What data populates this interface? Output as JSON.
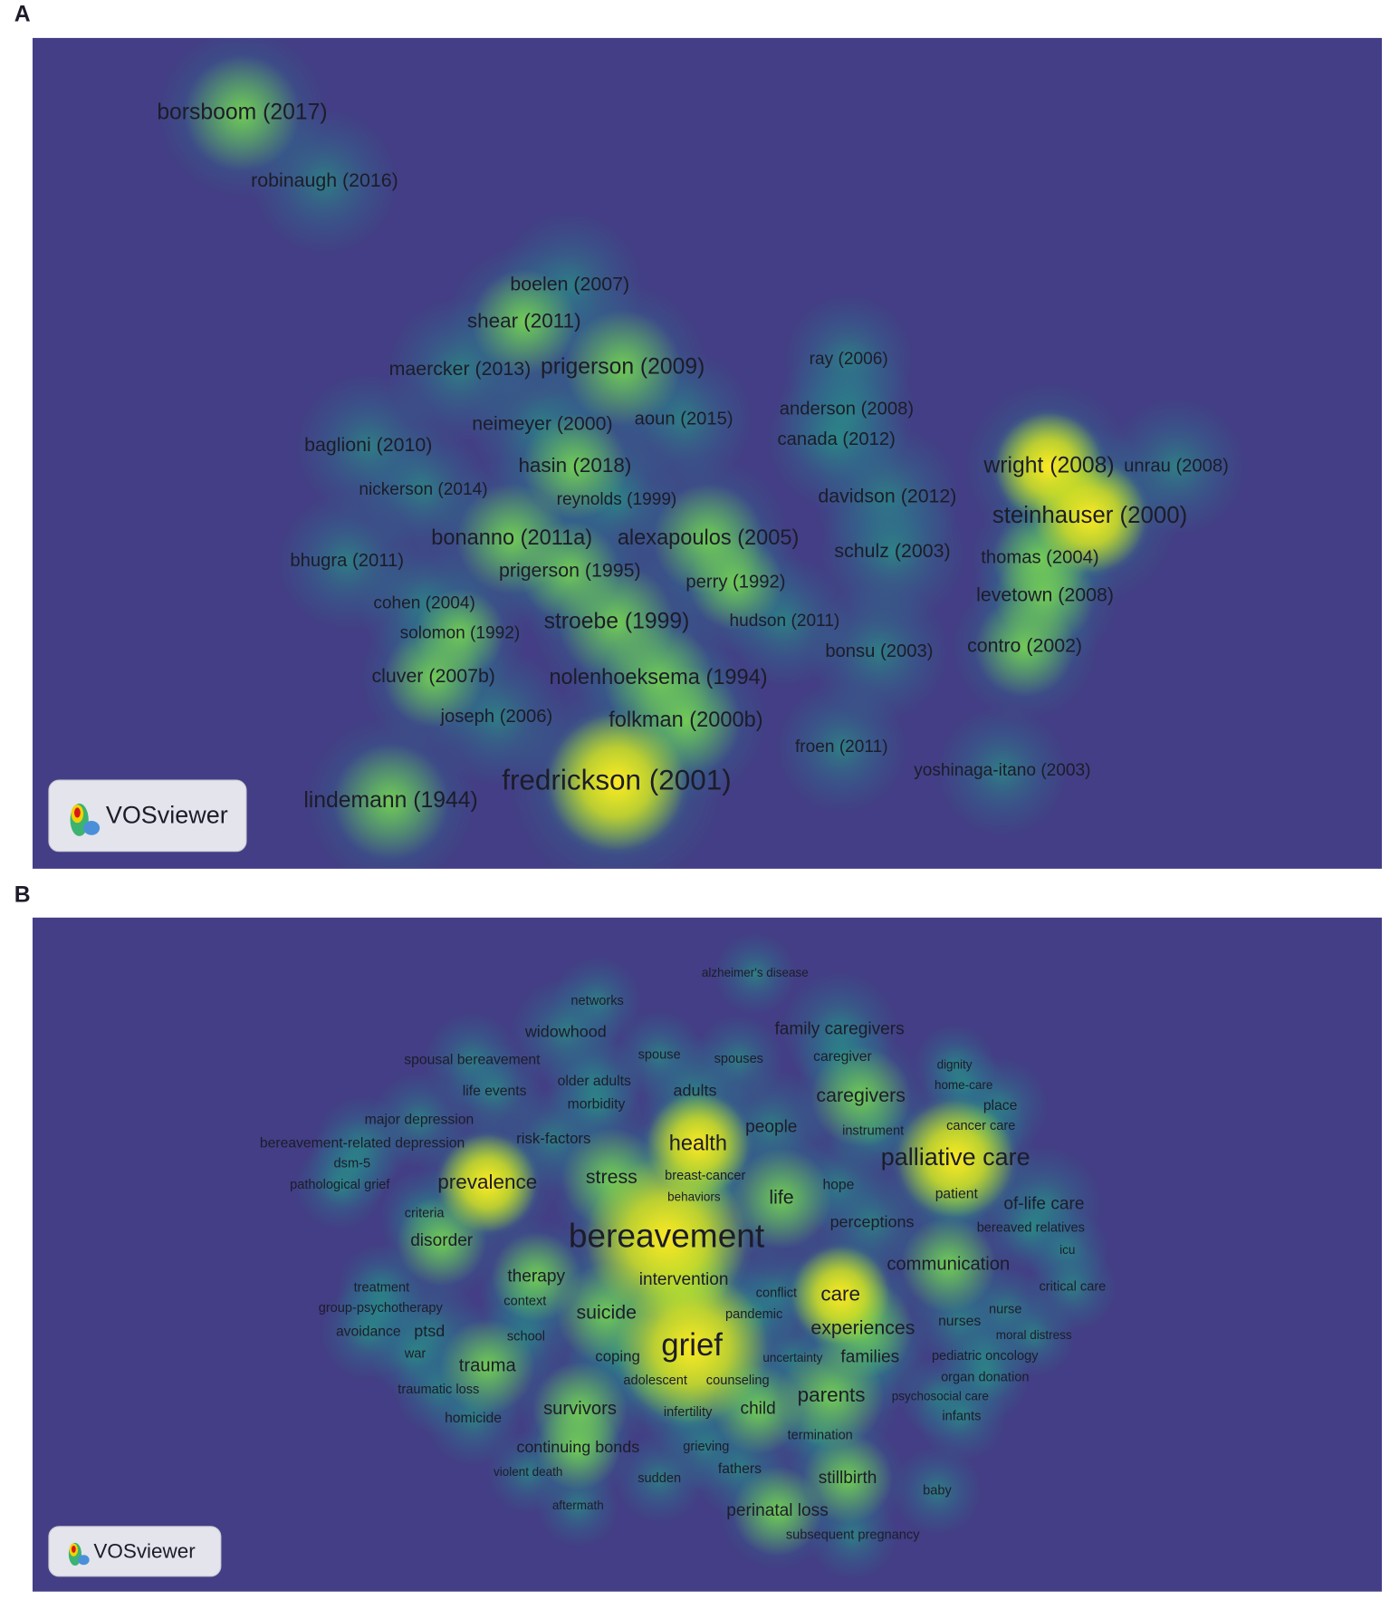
{
  "panels": [
    {
      "letter": "A",
      "logo": "VOSviewer",
      "labels": [
        "borsboom (2017)",
        "robinaugh (2016)",
        "boelen (2007)",
        "shear (2011)",
        "maercker (2013)",
        "prigerson (2009)",
        "ray (2006)",
        "neimeyer (2000)",
        "aoun (2015)",
        "anderson (2008)",
        "canada (2012)",
        "baglioni (2010)",
        "hasin (2018)",
        "wright (2008)",
        "unrau (2008)",
        "nickerson (2014)",
        "reynolds (1999)",
        "davidson (2012)",
        "steinhauser (2000)",
        "bonanno (2011a)",
        "alexapoulos (2005)",
        "schulz (2003)",
        "bhugra (2011)",
        "thomas (2004)",
        "prigerson (1995)",
        "perry (1992)",
        "levetown (2008)",
        "cohen (2004)",
        "stroebe (1999)",
        "hudson (2011)",
        "solomon (1992)",
        "contro (2002)",
        "bonsu (2003)",
        "cluver (2007b)",
        "nolenhoeksema (1994)",
        "joseph (2006)",
        "folkman (2000b)",
        "froen (2011)",
        "yoshinaga-itano (2003)",
        "fredrickson (2001)",
        "lindemann (1944)"
      ]
    },
    {
      "letter": "B",
      "logo": "VOSviewer",
      "labels": [
        "alzheimer's disease",
        "networks",
        "widowhood",
        "family caregivers",
        "spousal bereavement",
        "spouse",
        "spouses",
        "caregiver",
        "dignity",
        "older adults",
        "home-care",
        "life events",
        "adults",
        "caregivers",
        "morbidity",
        "place",
        "major depression",
        "people",
        "instrument",
        "cancer care",
        "bereavement-related depression",
        "risk-factors",
        "health",
        "palliative care",
        "dsm-5",
        "pathological grief",
        "prevalence",
        "stress",
        "breast-cancer",
        "hope",
        "behaviors",
        "life",
        "patient",
        "of-life care",
        "criteria",
        "perceptions",
        "bereaved relatives",
        "disorder",
        "bereavement",
        "icu",
        "communication",
        "therapy",
        "intervention",
        "treatment",
        "conflict",
        "care",
        "critical care",
        "context",
        "group-psychotherapy",
        "pandemic",
        "suicide",
        "nurse",
        "experiences",
        "nurses",
        "avoidance",
        "ptsd",
        "school",
        "moral distress",
        "grief",
        "war",
        "coping",
        "uncertainty",
        "families",
        "pediatric oncology",
        "trauma",
        "adolescent",
        "counseling",
        "organ donation",
        "traumatic loss",
        "parents",
        "psychosocial care",
        "survivors",
        "infertility",
        "child",
        "homicide",
        "infants",
        "termination",
        "continuing bonds",
        "grieving",
        "violent death",
        "fathers",
        "stillbirth",
        "sudden",
        "baby",
        "aftermath",
        "perinatal loss",
        "subsequent pregnancy"
      ]
    }
  ]
}
